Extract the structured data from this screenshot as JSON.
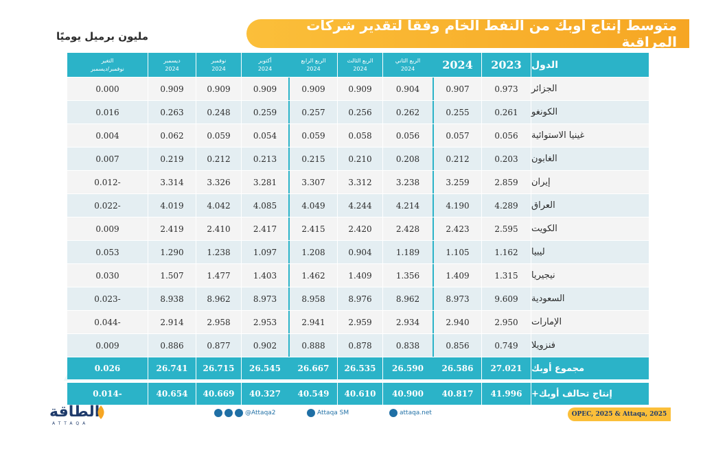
{
  "title": "متوسط إنتاج أوبك من النفط الخام وفقا لتقدير شركات المراقبة",
  "unit": "مليون برميل يوميًا",
  "chart_data": {
    "type": "table",
    "columns": [
      {
        "key": "country",
        "label": "الدول"
      },
      {
        "key": "y2023",
        "label": "2023"
      },
      {
        "key": "y2024",
        "label": "2024"
      },
      {
        "key": "q2",
        "label": "الربع الثاني",
        "sub": "2024"
      },
      {
        "key": "q3",
        "label": "الربع الثالث",
        "sub": "2024"
      },
      {
        "key": "q4",
        "label": "الربع الرابع",
        "sub": "2024"
      },
      {
        "key": "oct",
        "label": "أكتوبر",
        "sub": "2024"
      },
      {
        "key": "nov",
        "label": "نوفمبر",
        "sub": "2024"
      },
      {
        "key": "dec",
        "label": "ديسمبر",
        "sub": "2024"
      },
      {
        "key": "change",
        "label": "التغير",
        "sub": "نوفمبر/ديسمبر"
      }
    ],
    "rows": [
      {
        "country": "الجزائر",
        "y2023": "0.973",
        "y2024": "0.907",
        "q2": "0.904",
        "q3": "0.909",
        "q4": "0.909",
        "oct": "0.909",
        "nov": "0.909",
        "dec": "0.909",
        "change": "0.000"
      },
      {
        "country": "الكونغو",
        "y2023": "0.261",
        "y2024": "0.255",
        "q2": "0.262",
        "q3": "0.256",
        "q4": "0.257",
        "oct": "0.259",
        "nov": "0.248",
        "dec": "0.263",
        "change": "0.016"
      },
      {
        "country": "غينيا الاستوائية",
        "y2023": "0.056",
        "y2024": "0.057",
        "q2": "0.056",
        "q3": "0.058",
        "q4": "0.059",
        "oct": "0.054",
        "nov": "0.059",
        "dec": "0.062",
        "change": "0.004"
      },
      {
        "country": "الغابون",
        "y2023": "0.203",
        "y2024": "0.212",
        "q2": "0.208",
        "q3": "0.210",
        "q4": "0.215",
        "oct": "0.213",
        "nov": "0.212",
        "dec": "0.219",
        "change": "0.007"
      },
      {
        "country": "إيران",
        "y2023": "2.859",
        "y2024": "3.259",
        "q2": "3.238",
        "q3": "3.312",
        "q4": "3.307",
        "oct": "3.281",
        "nov": "3.326",
        "dec": "3.314",
        "change": "0.012-"
      },
      {
        "country": "العراق",
        "y2023": "4.289",
        "y2024": "4.190",
        "q2": "4.214",
        "q3": "4.244",
        "q4": "4.049",
        "oct": "4.085",
        "nov": "4.042",
        "dec": "4.019",
        "change": "0.022-"
      },
      {
        "country": "الكويت",
        "y2023": "2.595",
        "y2024": "2.423",
        "q2": "2.428",
        "q3": "2.420",
        "q4": "2.415",
        "oct": "2.417",
        "nov": "2.410",
        "dec": "2.419",
        "change": "0.009"
      },
      {
        "country": "ليبيا",
        "y2023": "1.162",
        "y2024": "1.105",
        "q2": "1.189",
        "q3": "0.904",
        "q4": "1.208",
        "oct": "1.097",
        "nov": "1.238",
        "dec": "1.290",
        "change": "0.053"
      },
      {
        "country": "نيجيريا",
        "y2023": "1.315",
        "y2024": "1.409",
        "q2": "1.356",
        "q3": "1.409",
        "q4": "1.462",
        "oct": "1.403",
        "nov": "1.477",
        "dec": "1.507",
        "change": "0.030"
      },
      {
        "country": "السعودية",
        "y2023": "9.609",
        "y2024": "8.973",
        "q2": "8.962",
        "q3": "8.976",
        "q4": "8.958",
        "oct": "8.973",
        "nov": "8.962",
        "dec": "8.938",
        "change": "0.023-"
      },
      {
        "country": "الإمارات",
        "y2023": "2.950",
        "y2024": "2.940",
        "q2": "2.934",
        "q3": "2.959",
        "q4": "2.941",
        "oct": "2.953",
        "nov": "2.958",
        "dec": "2.914",
        "change": "0.044-"
      },
      {
        "country": "فنزويلا",
        "y2023": "0.749",
        "y2024": "0.856",
        "q2": "0.838",
        "q3": "0.878",
        "q4": "0.888",
        "oct": "0.902",
        "nov": "0.877",
        "dec": "0.886",
        "change": "0.009"
      }
    ],
    "totals": [
      {
        "country": "مجموع أوبك",
        "y2023": "27.021",
        "y2024": "26.586",
        "q2": "26.590",
        "q3": "26.535",
        "q4": "26.667",
        "oct": "26.545",
        "nov": "26.715",
        "dec": "26.741",
        "change": "0.026"
      },
      {
        "country": "إنتاج تحالف أوبك+",
        "y2023": "41.996",
        "y2024": "40.817",
        "q2": "40.900",
        "q3": "40.610",
        "q4": "40.549",
        "oct": "40.327",
        "nov": "40.669",
        "dec": "40.654",
        "change": "0.014-"
      }
    ]
  },
  "footer": {
    "logo": "الطاقة",
    "logo_sub": "ATTAQA",
    "social_handle": "@Attaqa2",
    "youtube": "Attaqa SM",
    "website": "attaqa.net",
    "source": "OPEC, 2025 & Attaqa, 2025"
  },
  "colors": {
    "accent": "#2bb3c8",
    "title_bar": "#f6a623",
    "navy": "#1f3b6b"
  }
}
